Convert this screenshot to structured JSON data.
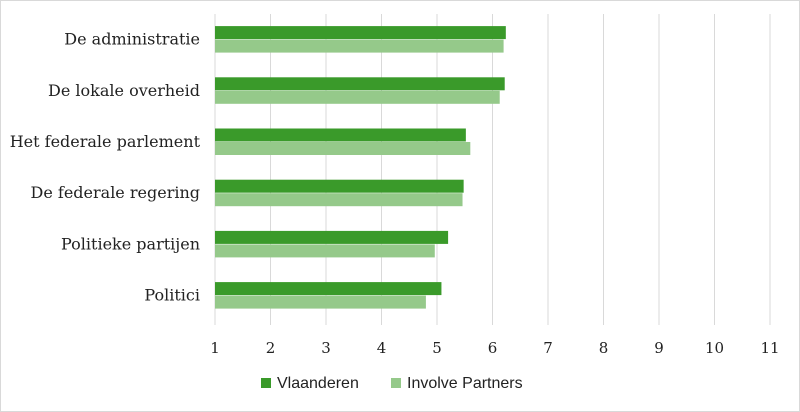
{
  "chart_data": {
    "type": "bar",
    "orientation": "horizontal",
    "categories": [
      "De administratie",
      "De lokale overheid",
      "Het federale parlement",
      "De federale regering",
      "Politieke partijen",
      "Politici"
    ],
    "series": [
      {
        "name": "Vlaanderen",
        "color": "#3a9a2a",
        "values": [
          6.24,
          6.22,
          5.52,
          5.48,
          5.2,
          5.08
        ]
      },
      {
        "name": "Involve Partners",
        "color": "#95c98a",
        "values": [
          6.2,
          6.13,
          5.6,
          5.46,
          4.96,
          4.8
        ]
      }
    ],
    "xlim": [
      1,
      11
    ],
    "xticks": [
      1,
      2,
      3,
      4,
      5,
      6,
      7,
      8,
      9,
      10,
      11
    ],
    "grid": "vertical",
    "legend_position": "bottom"
  },
  "colors": {
    "grid": "#d9d9d9",
    "text": "#222222"
  }
}
